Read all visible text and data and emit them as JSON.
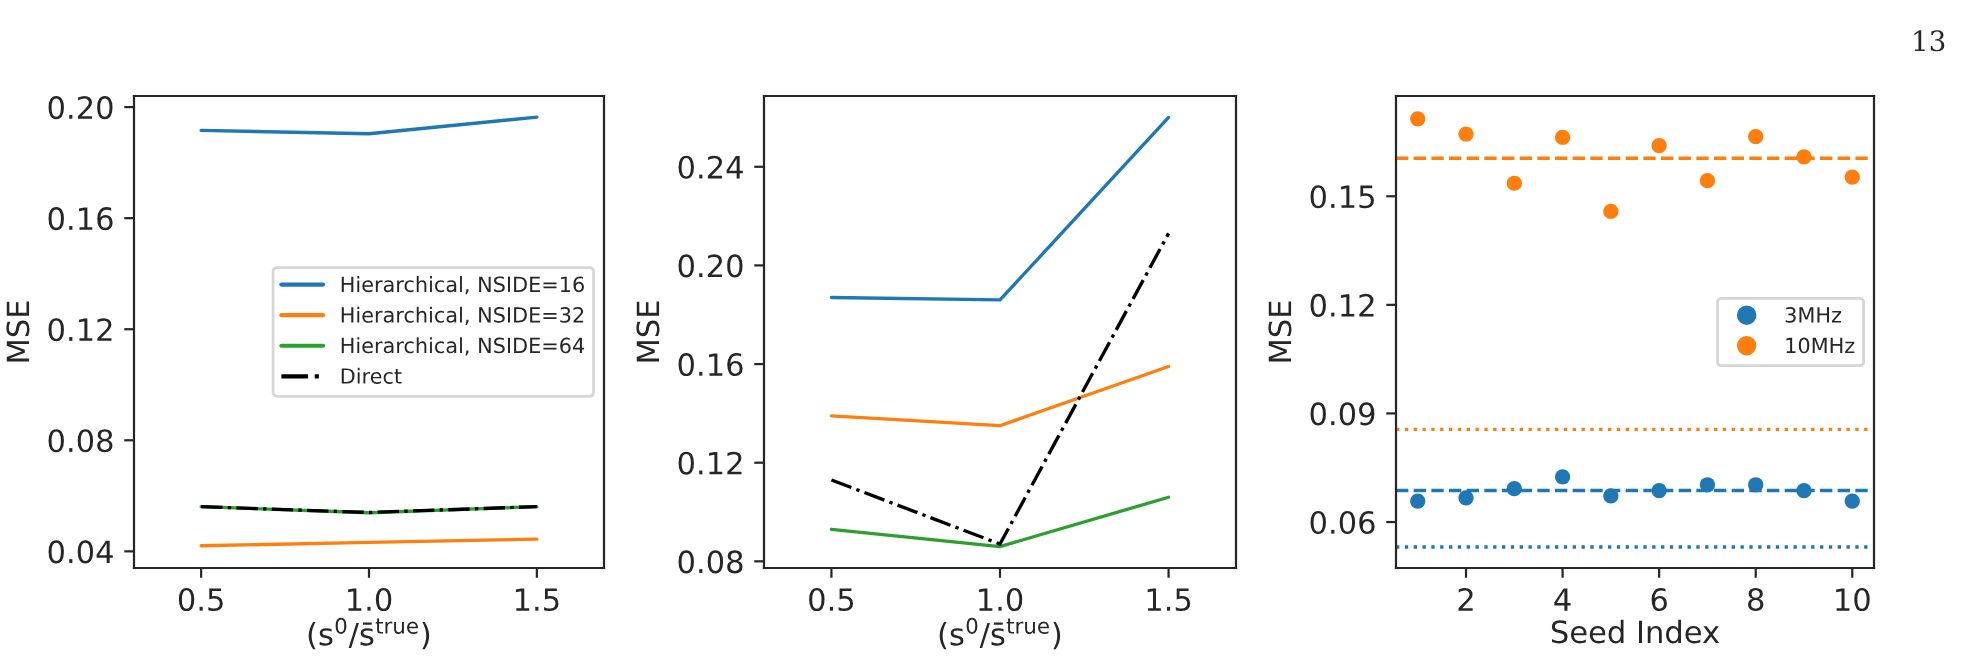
{
  "chart_data": [
    {
      "type": "line",
      "xlabel": "(s$^{0}$/s̄$^{true}$)",
      "ylabel": "MSE",
      "x": [
        0.5,
        1.0,
        1.5
      ],
      "xlim": [
        0.3,
        1.7
      ],
      "xticks": [
        {
          "value": 0.5,
          "label": "0.5"
        },
        {
          "value": 1.0,
          "label": "1.0"
        },
        {
          "value": 1.5,
          "label": "1.5"
        }
      ],
      "ylim": [
        0.034,
        0.204
      ],
      "yticks": [
        {
          "value": 0.04,
          "label": "0.04"
        },
        {
          "value": 0.08,
          "label": "0.08"
        },
        {
          "value": 0.12,
          "label": "0.12"
        },
        {
          "value": 0.16,
          "label": "0.16"
        },
        {
          "value": 0.2,
          "label": "0.20"
        }
      ],
      "grid": false,
      "legend": "center right",
      "series": [
        {
          "name": "Hierarchical, NSIDE=16",
          "color": "#1f77b4",
          "values": [
            0.1916,
            0.1904,
            0.1964
          ]
        },
        {
          "name": "Hierarchical, NSIDE=32",
          "color": "#ff7f0e",
          "values": [
            0.042,
            0.0432,
            0.0444
          ]
        },
        {
          "name": "Hierarchical, NSIDE=64",
          "color": "#2ca02c",
          "values": [
            0.0561,
            0.0539,
            0.0561
          ]
        },
        {
          "name": "Direct",
          "color": "#000000",
          "line_style": "dashdot",
          "values": [
            0.0561,
            0.054,
            0.0561
          ]
        }
      ]
    },
    {
      "type": "line",
      "xlabel": "(s$^{0}$/s̄$^{true}$)",
      "ylabel": "MSE",
      "x": [
        0.5,
        1.0,
        1.5
      ],
      "xlim": [
        0.3,
        1.7
      ],
      "xticks": [
        {
          "value": 0.5,
          "label": "0.5"
        },
        {
          "value": 1.0,
          "label": "1.0"
        },
        {
          "value": 1.5,
          "label": "1.5"
        }
      ],
      "ylim": [
        0.0773,
        0.2687
      ],
      "yticks": [
        {
          "value": 0.08,
          "label": "0.08"
        },
        {
          "value": 0.12,
          "label": "0.12"
        },
        {
          "value": 0.16,
          "label": "0.16"
        },
        {
          "value": 0.2,
          "label": "0.20"
        },
        {
          "value": 0.24,
          "label": "0.24"
        }
      ],
      "grid": false,
      "legend": false,
      "series": [
        {
          "color": "#1f77b4",
          "values": [
            0.187,
            0.186,
            0.26
          ]
        },
        {
          "color": "#ff7f0e",
          "values": [
            0.139,
            0.135,
            0.159
          ]
        },
        {
          "color": "#2ca02c",
          "values": [
            0.093,
            0.086,
            0.106
          ]
        },
        {
          "color": "#000000",
          "line_style": "dashdot",
          "values": [
            0.113,
            0.087,
            0.213
          ]
        }
      ]
    },
    {
      "type": "scatter",
      "xlabel": "Seed Index",
      "ylabel": "MSE",
      "x": [
        1,
        2,
        3,
        4,
        5,
        6,
        7,
        8,
        9,
        10
      ],
      "xlim": [
        0.55,
        10.45
      ],
      "xticks": [
        2,
        4,
        6,
        8,
        10
      ],
      "ylim": [
        0.0473,
        0.1777
      ],
      "yticks": [
        {
          "value": 0.06,
          "label": "0.06"
        },
        {
          "value": 0.09,
          "label": "0.09"
        },
        {
          "value": 0.12,
          "label": "0.12"
        },
        {
          "value": 0.15,
          "label": "0.15"
        }
      ],
      "grid": false,
      "legend": "center right",
      "marker": "circle",
      "series": [
        {
          "name": "3MHz",
          "color": "#1f77b4",
          "values": [
            0.0658,
            0.0667,
            0.0692,
            0.0725,
            0.0672,
            0.0687,
            0.0703,
            0.0703,
            0.0687,
            0.0658
          ]
        },
        {
          "name": "10MHz",
          "color": "#ff7f0e",
          "values": [
            0.1714,
            0.1672,
            0.1536,
            0.1663,
            0.1458,
            0.164,
            0.1543,
            0.1665,
            0.1609,
            0.1553
          ]
        }
      ],
      "ref_lines": [
        {
          "axis": "y",
          "value": 0.1605,
          "color": "#ff7f0e",
          "line_style": "dashed"
        },
        {
          "axis": "y",
          "value": 0.0856,
          "color": "#ff7f0e",
          "line_style": "dotted"
        },
        {
          "axis": "y",
          "value": 0.0687,
          "color": "#1f77b4",
          "line_style": "dashed"
        },
        {
          "axis": "y",
          "value": 0.0531,
          "color": "#1f77b4",
          "line_style": "dotted"
        }
      ],
      "annotations": [
        "13"
      ]
    }
  ]
}
